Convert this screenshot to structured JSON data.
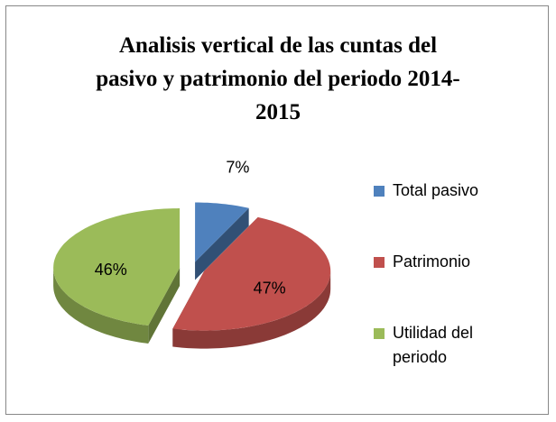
{
  "chart_data": {
    "type": "pie3d",
    "title": "Analisis vertical de las cuntas del pasivo y patrimonio del periodo 2014-2015",
    "categories": [
      "Total pasivo",
      "Patrimonio",
      "Utilidad del periodo"
    ],
    "values": [
      7,
      47,
      46
    ],
    "value_labels": [
      "7%",
      "47%",
      "46%"
    ],
    "colors": [
      "#4f81bd",
      "#c0504d",
      "#9bbb59"
    ],
    "legend": "right"
  }
}
